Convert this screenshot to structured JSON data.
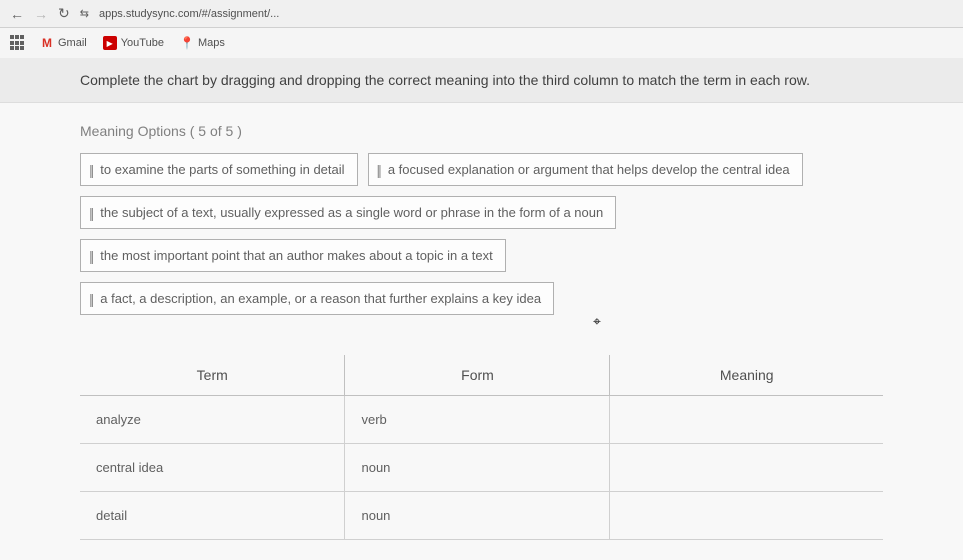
{
  "browser": {
    "url": "apps.studysync.com/#/assignment/..."
  },
  "bookmarks": {
    "gmail": "Gmail",
    "youtube": "YouTube",
    "maps": "Maps"
  },
  "instruction": "Complete the chart by dragging and dropping the correct meaning into the third column to match the term in each row.",
  "options_header": "Meaning Options ( 5 of 5 )",
  "options": [
    "to examine the parts of something in detail",
    "a focused explanation or argument that helps develop the central idea",
    "the subject of a text, usually expressed as a single word or phrase in the form of a noun",
    "the most important point that an author makes about a topic in a text",
    "a fact, a description, an example, or a reason that further explains a key idea"
  ],
  "table": {
    "headers": {
      "term": "Term",
      "form": "Form",
      "meaning": "Meaning"
    },
    "rows": [
      {
        "term": "analyze",
        "form": "verb",
        "meaning": ""
      },
      {
        "term": "central idea",
        "form": "noun",
        "meaning": ""
      },
      {
        "term": "detail",
        "form": "noun",
        "meaning": ""
      }
    ]
  }
}
